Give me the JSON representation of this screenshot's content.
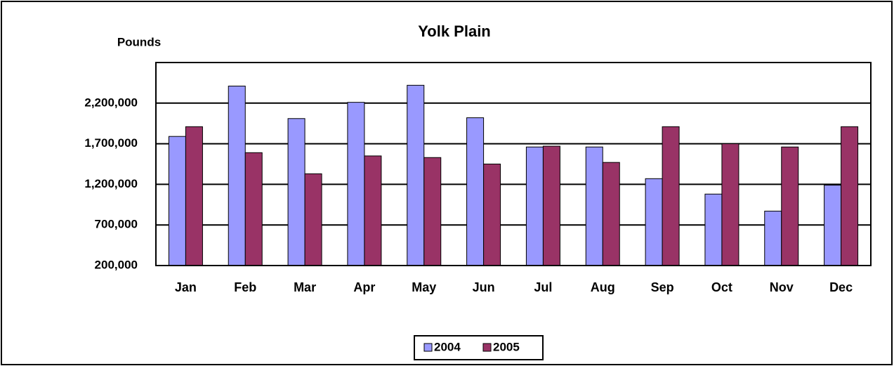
{
  "chart_data": {
    "type": "bar",
    "title": "Yolk Plain",
    "y_label": "Pounds",
    "categories": [
      "Jan",
      "Feb",
      "Mar",
      "Apr",
      "May",
      "Jun",
      "Jul",
      "Aug",
      "Sep",
      "Oct",
      "Nov",
      "Dec"
    ],
    "series": [
      {
        "name": "2004",
        "color": "#9999ff",
        "values": [
          1790000,
          2410000,
          2010000,
          2210000,
          2420000,
          2020000,
          1660000,
          1660000,
          1270000,
          1080000,
          870000,
          1190000
        ]
      },
      {
        "name": "2005",
        "color": "#993366",
        "values": [
          1910000,
          1590000,
          1330000,
          1550000,
          1530000,
          1450000,
          1670000,
          1470000,
          1910000,
          1700000,
          1660000,
          1910000
        ]
      }
    ],
    "ylim": [
      200000,
      2700000
    ],
    "yticks": [
      {
        "value": 200000,
        "label": "200,000"
      },
      {
        "value": 700000,
        "label": "700,000"
      },
      {
        "value": 1200000,
        "label": "1,200,000"
      },
      {
        "value": 1700000,
        "label": "1,700,000"
      },
      {
        "value": 2200000,
        "label": "2,200,000"
      }
    ],
    "grid": true,
    "legend": "bottom"
  }
}
